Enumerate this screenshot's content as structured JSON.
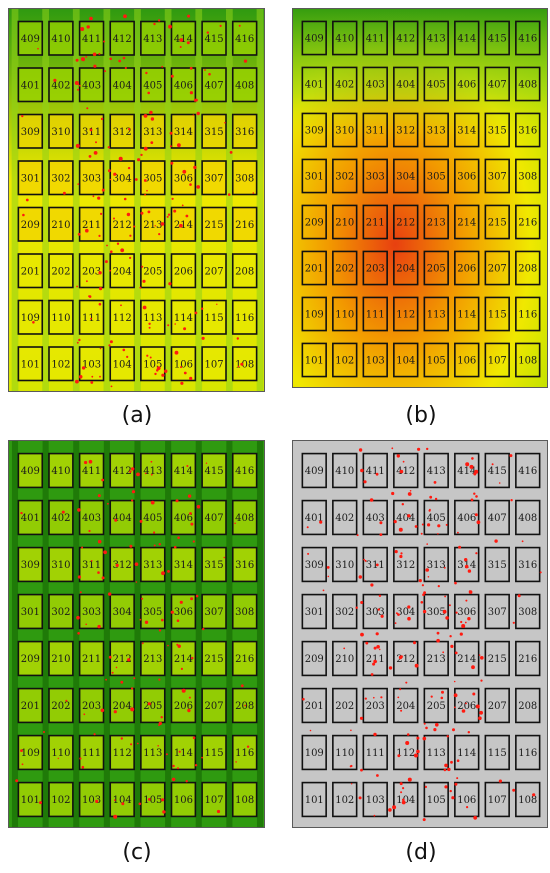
{
  "captions": {
    "a": "(a)",
    "b": "(b)",
    "c": "(c)",
    "d": "(d)"
  },
  "grid_rows": [
    [
      "409",
      "410",
      "411",
      "412",
      "413",
      "414",
      "415",
      "416"
    ],
    [
      "401",
      "402",
      "403",
      "404",
      "405",
      "406",
      "407",
      "408"
    ],
    [
      "309",
      "310",
      "311",
      "312",
      "313",
      "314",
      "315",
      "316"
    ],
    [
      "301",
      "302",
      "303",
      "304",
      "305",
      "306",
      "307",
      "308"
    ],
    [
      "209",
      "210",
      "211",
      "212",
      "213",
      "214",
      "215",
      "216"
    ],
    [
      "201",
      "202",
      "203",
      "204",
      "205",
      "206",
      "207",
      "208"
    ],
    [
      "109",
      "110",
      "111",
      "112",
      "113",
      "114",
      "115",
      "116"
    ],
    [
      "101",
      "102",
      "103",
      "104",
      "105",
      "106",
      "107",
      "108"
    ]
  ],
  "colors": {
    "green_dark": "#2f9a10",
    "green_light": "#8fd21a",
    "yellow": "#f0e800",
    "orange": "#f29a00",
    "red": "#e84010",
    "gray_bg": "#c6c6c6",
    "spot_red": "#ff1a10",
    "plot_border": "#111111"
  }
}
